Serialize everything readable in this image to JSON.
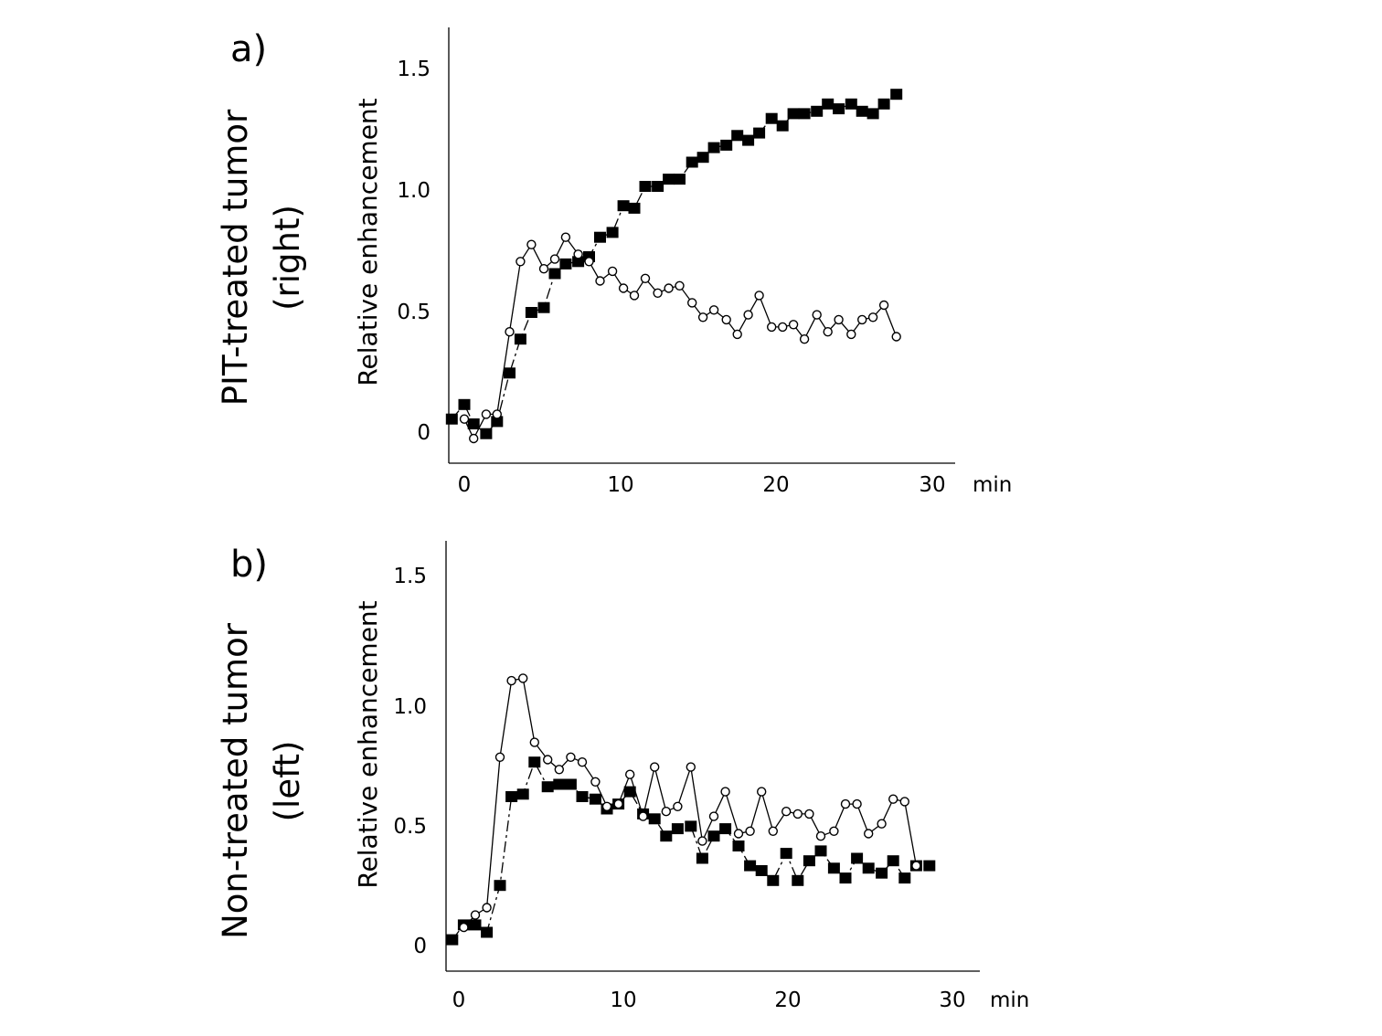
{
  "chart_data": [
    {
      "type": "line",
      "panel_label": "a)",
      "side_label_line1": "PIT-treated tumor",
      "side_label_line2": "(right)",
      "ylabel": "Relative enhancement",
      "xunit": "min",
      "xticks": [
        "0",
        "10",
        "20",
        "30"
      ],
      "yticks": [
        "0",
        "0.5",
        "1.0",
        "1.5"
      ],
      "xlim": [
        -1,
        31
      ],
      "ylim": [
        -0.13,
        1.65
      ],
      "series": [
        {
          "name": "filled-square",
          "marker": "square",
          "x": [
            -0.8,
            0,
            0.6,
            1.4,
            2.1,
            2.9,
            3.6,
            4.3,
            5.1,
            5.8,
            6.5,
            7.3,
            8.0,
            8.7,
            9.5,
            10.2,
            10.9,
            11.6,
            12.4,
            13.1,
            13.8,
            14.6,
            15.3,
            16.0,
            16.8,
            17.5,
            18.2,
            18.9,
            19.7,
            20.4,
            21.1,
            21.8,
            22.6,
            23.3,
            24.0,
            24.8,
            25.5,
            26.2,
            26.9,
            27.7
          ],
          "values": [
            0.05,
            0.11,
            0.03,
            -0.01,
            0.04,
            0.24,
            0.38,
            0.49,
            0.51,
            0.65,
            0.69,
            0.7,
            0.72,
            0.8,
            0.82,
            0.93,
            0.92,
            1.01,
            1.01,
            1.04,
            1.04,
            1.11,
            1.13,
            1.17,
            1.18,
            1.22,
            1.2,
            1.23,
            1.29,
            1.26,
            1.31,
            1.31,
            1.32,
            1.35,
            1.33,
            1.35,
            1.32,
            1.31,
            1.35,
            1.39
          ]
        },
        {
          "name": "open-circle",
          "marker": "circle",
          "x": [
            0,
            0.6,
            1.4,
            2.1,
            2.9,
            3.6,
            4.3,
            5.1,
            5.8,
            6.5,
            7.3,
            8.0,
            8.7,
            9.5,
            10.2,
            10.9,
            11.6,
            12.4,
            13.1,
            13.8,
            14.6,
            15.3,
            16.0,
            16.8,
            17.5,
            18.2,
            18.9,
            19.7,
            20.4,
            21.1,
            21.8,
            22.6,
            23.3,
            24.0,
            24.8,
            25.5,
            26.2,
            26.9,
            27.7
          ],
          "values": [
            0.05,
            -0.03,
            0.07,
            0.07,
            0.41,
            0.7,
            0.77,
            0.67,
            0.71,
            0.8,
            0.73,
            0.7,
            0.62,
            0.66,
            0.59,
            0.56,
            0.63,
            0.57,
            0.59,
            0.6,
            0.53,
            0.47,
            0.5,
            0.46,
            0.4,
            0.48,
            0.56,
            0.43,
            0.43,
            0.44,
            0.38,
            0.48,
            0.41,
            0.46,
            0.4,
            0.46,
            0.47,
            0.52,
            0.39
          ]
        }
      ]
    },
    {
      "type": "line",
      "panel_label": "b)",
      "side_label_line1": "Non-treated tumor",
      "side_label_line2": "(left)",
      "ylabel": "Relative enhancement",
      "xunit": "min",
      "xticks": [
        "0",
        "10",
        "20",
        "30"
      ],
      "yticks": [
        "0",
        "0.5",
        "1.0",
        "1.5"
      ],
      "xlim": [
        -1,
        31
      ],
      "ylim": [
        -0.12,
        1.65
      ],
      "series": [
        {
          "name": "filled-square",
          "marker": "square",
          "x": [
            -0.4,
            0.3,
            1.0,
            1.7,
            2.5,
            3.2,
            3.9,
            4.6,
            5.4,
            6.1,
            6.8,
            7.5,
            8.3,
            9.0,
            9.7,
            10.4,
            11.2,
            11.9,
            12.6,
            13.3,
            14.1,
            14.8,
            15.5,
            16.2,
            17.0,
            17.7,
            18.4,
            19.1,
            19.9,
            20.6,
            21.3,
            22.0,
            22.8,
            23.5,
            24.2,
            24.9,
            25.7,
            26.4,
            27.1,
            27.8,
            28.6
          ],
          "values": [
            0.02,
            0.08,
            0.08,
            0.05,
            0.24,
            0.6,
            0.61,
            0.74,
            0.64,
            0.65,
            0.65,
            0.6,
            0.59,
            0.55,
            0.57,
            0.62,
            0.53,
            0.51,
            0.44,
            0.47,
            0.48,
            0.35,
            0.44,
            0.47,
            0.4,
            0.32,
            0.3,
            0.26,
            0.37,
            0.26,
            0.34,
            0.38,
            0.31,
            0.27,
            0.35,
            0.31,
            0.29,
            0.34,
            0.27,
            0.32,
            0.32
          ]
        },
        {
          "name": "open-circle",
          "marker": "circle",
          "x": [
            0.3,
            1.0,
            1.7,
            2.5,
            3.2,
            3.9,
            4.6,
            5.4,
            6.1,
            6.8,
            7.5,
            8.3,
            9.0,
            9.7,
            10.4,
            11.2,
            11.9,
            12.6,
            13.3,
            14.1,
            14.8,
            15.5,
            16.2,
            17.0,
            17.7,
            18.4,
            19.1,
            19.9,
            20.6,
            21.3,
            22.0,
            22.8,
            23.5,
            24.2,
            24.9,
            25.7,
            26.4,
            27.1,
            27.8
          ],
          "values": [
            0.07,
            0.12,
            0.15,
            0.76,
            1.07,
            1.08,
            0.82,
            0.75,
            0.71,
            0.76,
            0.74,
            0.66,
            0.56,
            0.57,
            0.69,
            0.52,
            0.72,
            0.54,
            0.56,
            0.72,
            0.42,
            0.52,
            0.62,
            0.45,
            0.46,
            0.62,
            0.46,
            0.54,
            0.53,
            0.53,
            0.44,
            0.46,
            0.57,
            0.57,
            0.45,
            0.49,
            0.59,
            0.58,
            0.32
          ]
        }
      ]
    }
  ]
}
